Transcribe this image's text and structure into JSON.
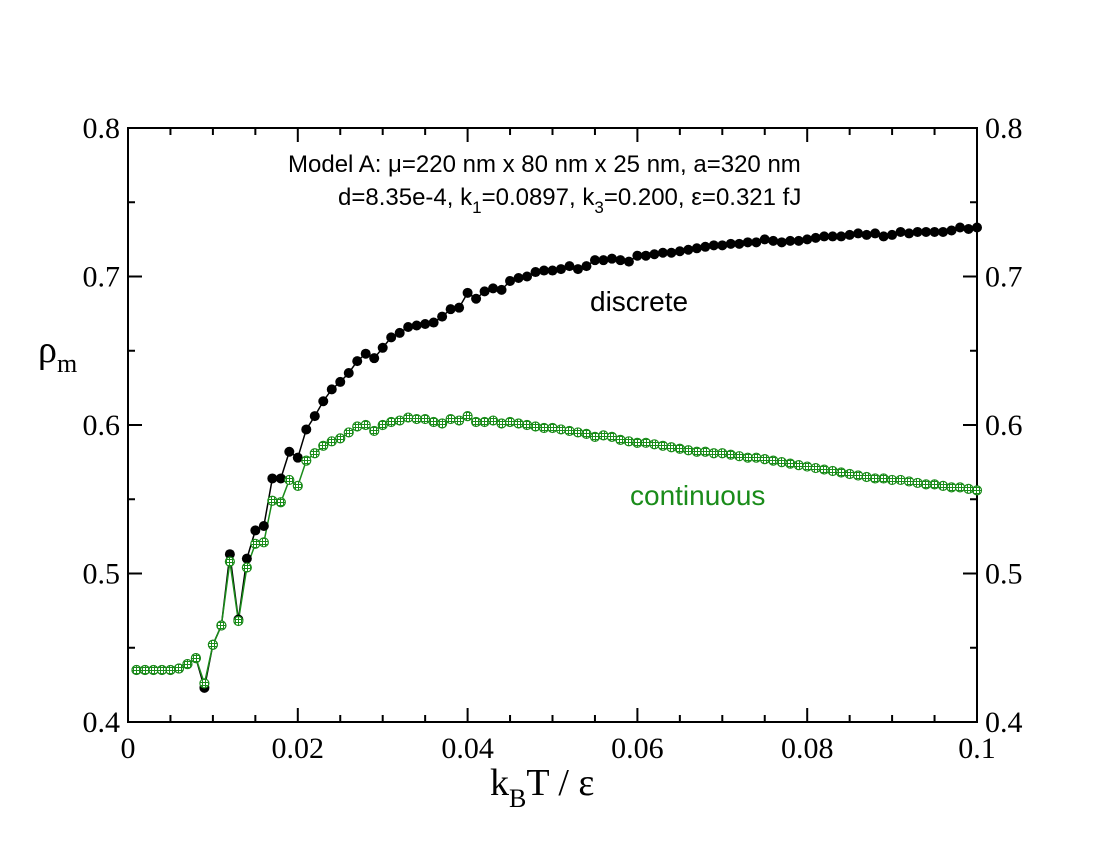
{
  "chart_data": {
    "type": "scatter",
    "xlabel_main": "k",
    "xlabel_sub": "B",
    "xlabel_tail": "T / ε",
    "ylabel_main": "ρ",
    "ylabel_sub": "m",
    "xlim": [
      0,
      0.1
    ],
    "ylim": [
      0.4,
      0.8
    ],
    "x_ticks": [
      0,
      0.02,
      0.04,
      0.06,
      0.08,
      0.1
    ],
    "x_tick_labels": [
      "0",
      "0.02",
      "0.04",
      "0.06",
      "0.08",
      "0.1"
    ],
    "y_ticks": [
      0.4,
      0.5,
      0.6,
      0.7,
      0.8
    ],
    "y_tick_labels": [
      "0.4",
      "0.5",
      "0.6",
      "0.7",
      "0.8"
    ],
    "annotation_line1": "Model A: μ=220 nm x 80 nm x 25 nm, a=320 nm",
    "annotation_line2": {
      "p1": "d=8.35e-4,  k",
      "s1": "1",
      "p2": "=0.0897,  k",
      "s2": "3",
      "p3": "=0.200, ε=0.321 fJ"
    },
    "series": [
      {
        "name": "discrete",
        "color": "#000000",
        "marker": "filled-circle",
        "x": [
          0.001,
          0.002,
          0.003,
          0.004,
          0.005,
          0.006,
          0.007,
          0.008,
          0.009,
          0.01,
          0.011,
          0.012,
          0.013,
          0.014,
          0.015,
          0.016,
          0.017,
          0.018,
          0.019,
          0.02,
          0.021,
          0.022,
          0.023,
          0.024,
          0.025,
          0.026,
          0.027,
          0.028,
          0.029,
          0.03,
          0.031,
          0.032,
          0.033,
          0.034,
          0.035,
          0.036,
          0.037,
          0.038,
          0.039,
          0.04,
          0.041,
          0.042,
          0.043,
          0.044,
          0.045,
          0.046,
          0.047,
          0.048,
          0.049,
          0.05,
          0.051,
          0.052,
          0.053,
          0.054,
          0.055,
          0.056,
          0.057,
          0.058,
          0.059,
          0.06,
          0.061,
          0.062,
          0.063,
          0.064,
          0.065,
          0.066,
          0.067,
          0.068,
          0.069,
          0.07,
          0.071,
          0.072,
          0.073,
          0.074,
          0.075,
          0.076,
          0.077,
          0.078,
          0.079,
          0.08,
          0.081,
          0.082,
          0.083,
          0.084,
          0.085,
          0.086,
          0.087,
          0.088,
          0.089,
          0.09,
          0.091,
          0.092,
          0.093,
          0.094,
          0.095,
          0.096,
          0.097,
          0.098,
          0.099,
          0.1
        ],
        "y": [
          0.435,
          0.435,
          0.435,
          0.435,
          0.435,
          0.436,
          0.439,
          0.443,
          0.423,
          0.452,
          0.465,
          0.513,
          0.469,
          0.51,
          0.529,
          0.532,
          0.564,
          0.564,
          0.582,
          0.578,
          0.597,
          0.606,
          0.616,
          0.624,
          0.629,
          0.635,
          0.643,
          0.648,
          0.645,
          0.652,
          0.659,
          0.662,
          0.666,
          0.667,
          0.668,
          0.669,
          0.673,
          0.678,
          0.679,
          0.689,
          0.685,
          0.69,
          0.692,
          0.691,
          0.697,
          0.699,
          0.7,
          0.703,
          0.704,
          0.704,
          0.705,
          0.707,
          0.705,
          0.707,
          0.711,
          0.711,
          0.712,
          0.711,
          0.71,
          0.714,
          0.714,
          0.715,
          0.716,
          0.716,
          0.717,
          0.718,
          0.719,
          0.72,
          0.721,
          0.721,
          0.722,
          0.722,
          0.723,
          0.723,
          0.725,
          0.724,
          0.723,
          0.724,
          0.724,
          0.725,
          0.726,
          0.727,
          0.727,
          0.727,
          0.728,
          0.729,
          0.728,
          0.729,
          0.727,
          0.728,
          0.73,
          0.729,
          0.73,
          0.73,
          0.73,
          0.73,
          0.731,
          0.733,
          0.732,
          0.733
        ]
      },
      {
        "name": "continuous",
        "color": "#1a8c1a",
        "marker": "hatched-circle",
        "x": [
          0.001,
          0.002,
          0.003,
          0.004,
          0.005,
          0.006,
          0.007,
          0.008,
          0.009,
          0.01,
          0.011,
          0.012,
          0.013,
          0.014,
          0.015,
          0.016,
          0.017,
          0.018,
          0.019,
          0.02,
          0.021,
          0.022,
          0.023,
          0.024,
          0.025,
          0.026,
          0.027,
          0.028,
          0.029,
          0.03,
          0.031,
          0.032,
          0.033,
          0.034,
          0.035,
          0.036,
          0.037,
          0.038,
          0.039,
          0.04,
          0.041,
          0.042,
          0.043,
          0.044,
          0.045,
          0.046,
          0.047,
          0.048,
          0.049,
          0.05,
          0.051,
          0.052,
          0.053,
          0.054,
          0.055,
          0.056,
          0.057,
          0.058,
          0.059,
          0.06,
          0.061,
          0.062,
          0.063,
          0.064,
          0.065,
          0.066,
          0.067,
          0.068,
          0.069,
          0.07,
          0.071,
          0.072,
          0.073,
          0.074,
          0.075,
          0.076,
          0.077,
          0.078,
          0.079,
          0.08,
          0.081,
          0.082,
          0.083,
          0.084,
          0.085,
          0.086,
          0.087,
          0.088,
          0.089,
          0.09,
          0.091,
          0.092,
          0.093,
          0.094,
          0.095,
          0.096,
          0.097,
          0.098,
          0.099,
          0.1
        ],
        "y": [
          0.435,
          0.435,
          0.435,
          0.435,
          0.435,
          0.436,
          0.439,
          0.443,
          0.426,
          0.452,
          0.465,
          0.508,
          0.468,
          0.504,
          0.52,
          0.521,
          0.549,
          0.548,
          0.563,
          0.559,
          0.576,
          0.581,
          0.586,
          0.589,
          0.591,
          0.595,
          0.599,
          0.6,
          0.596,
          0.6,
          0.602,
          0.603,
          0.605,
          0.604,
          0.604,
          0.602,
          0.601,
          0.604,
          0.603,
          0.606,
          0.602,
          0.602,
          0.603,
          0.601,
          0.602,
          0.601,
          0.6,
          0.599,
          0.598,
          0.598,
          0.597,
          0.596,
          0.595,
          0.594,
          0.592,
          0.593,
          0.592,
          0.59,
          0.589,
          0.588,
          0.588,
          0.587,
          0.586,
          0.585,
          0.584,
          0.583,
          0.582,
          0.582,
          0.581,
          0.581,
          0.58,
          0.579,
          0.578,
          0.578,
          0.577,
          0.576,
          0.575,
          0.574,
          0.573,
          0.572,
          0.571,
          0.57,
          0.569,
          0.568,
          0.567,
          0.566,
          0.565,
          0.564,
          0.564,
          0.563,
          0.563,
          0.562,
          0.561,
          0.56,
          0.56,
          0.559,
          0.558,
          0.558,
          0.557,
          0.556
        ]
      }
    ],
    "series_labels": {
      "discrete": "discrete",
      "continuous": "continuous"
    }
  }
}
